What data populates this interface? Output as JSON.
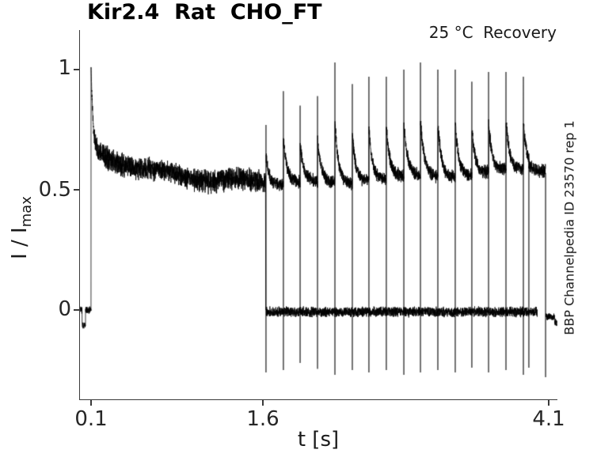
{
  "ui": {
    "title": "Kir2.4  Rat  CHO_FT",
    "annotation": "25 °C  Recovery",
    "watermark": "BBP Channelpedia ID 23570 rep 1",
    "xlabel": "t [s]",
    "ylabel_main": "I / I",
    "ylabel_sub": "max",
    "x_tick_labels": [
      "0.1",
      "1.6",
      "4.1"
    ],
    "y_tick_labels": [
      "0",
      "0.5",
      "1"
    ]
  },
  "chart_data": {
    "type": "line",
    "title": "Kir2.4  Rat  CHO_FT",
    "annotation": "25 °C  Recovery",
    "watermark": "BBP Channelpedia ID 23570 rep 1",
    "xlabel": "t [s]",
    "ylabel": "I / I_max",
    "x_ticks": [
      0.1,
      1.6,
      4.1
    ],
    "y_ticks": [
      0,
      0.5,
      1
    ],
    "xlim": [
      0.0,
      4.18
    ],
    "ylim": [
      -0.375,
      1.17
    ],
    "grid": false,
    "legend": false,
    "line_color": "#000000",
    "background": "#ffffff",
    "segments": {
      "pre_baseline": {
        "t_start": 0.004,
        "t_end": 0.0995,
        "level": 0.0,
        "noise": 0.02,
        "dip": {
          "t_start": 0.022,
          "t_end": 0.052,
          "level": -0.065,
          "noise": 0.015
        }
      },
      "main_pulse": {
        "t_on": 0.1,
        "peak": 1.01,
        "t_off": 1.624,
        "fast_decay_amp": 0.34,
        "fast_decay_tau": 0.016,
        "plateau_base": 0.515,
        "plateau_decay_amp": 0.155,
        "plateau_decay_tau": 0.62,
        "noise": 0.055,
        "end_level": 0.0
      },
      "recovery_upper": {
        "t_start": 1.628,
        "t_end": 4.0695,
        "level_start": 0.515,
        "slope": 0.028,
        "noise": 0.032,
        "post_spike_decay_tau": 0.032,
        "post_spike_decay_frac": 0.5
      },
      "recovery_lower": {
        "t_start": 1.63,
        "t_end": 3.998,
        "level": -0.008,
        "noise": 0.024,
        "tail": {
          "t_start": 4.072,
          "t_end": 4.168,
          "level": -0.028,
          "noise": 0.018,
          "end_dip": -0.025
        }
      },
      "test_pulses": {
        "times": [
          1.628,
          1.78,
          1.926,
          2.078,
          2.23,
          2.382,
          2.527,
          2.679,
          2.832,
          2.977,
          3.129,
          3.281,
          3.426,
          3.572,
          3.724,
          3.876,
          3.924,
          4.07
        ],
        "peaks": [
          0.77,
          0.91,
          0.85,
          0.89,
          1.03,
          0.94,
          0.97,
          0.97,
          1.0,
          1.03,
          1.0,
          1.0,
          0.95,
          0.99,
          0.99,
          0.97,
          0.63,
          0.57
        ],
        "bottoms": [
          -0.26,
          -0.25,
          -0.22,
          -0.245,
          -0.27,
          -0.25,
          -0.26,
          -0.25,
          -0.27,
          -0.26,
          -0.25,
          -0.26,
          -0.24,
          -0.26,
          -0.25,
          -0.27,
          -0.24,
          -0.28
        ]
      }
    }
  }
}
